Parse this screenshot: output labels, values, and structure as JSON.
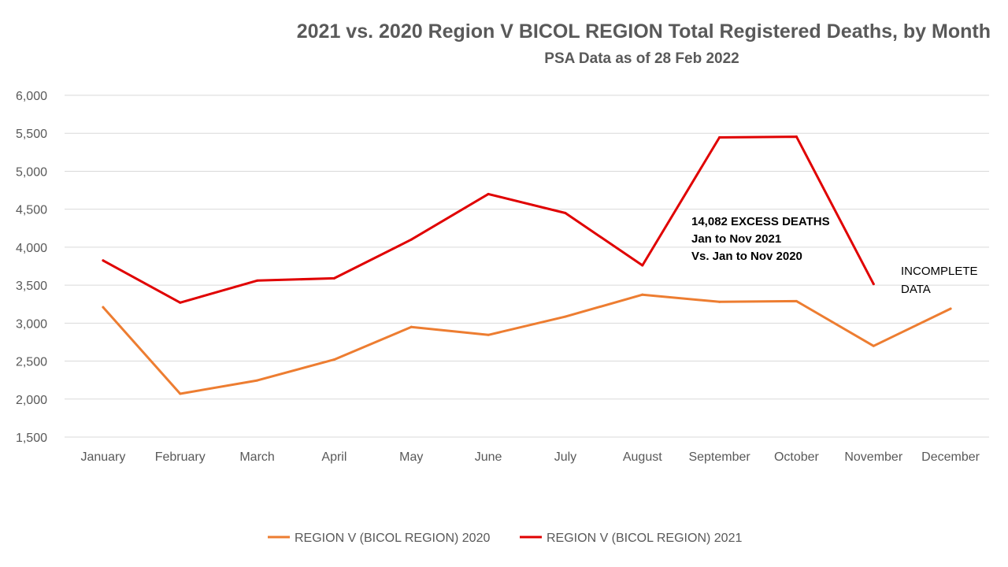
{
  "chart_data": {
    "type": "line",
    "title": "2021 vs. 2020 Region V BICOL REGION Total Registered Deaths, by Month",
    "subtitle": "PSA Data as of 28 Feb 2022",
    "categories": [
      "January",
      "February",
      "March",
      "April",
      "May",
      "June",
      "July",
      "August",
      "September",
      "October",
      "November",
      "December"
    ],
    "ylim": [
      1500,
      6000
    ],
    "yticks": [
      1500,
      2000,
      2500,
      3000,
      3500,
      4000,
      4500,
      5000,
      5500,
      6000
    ],
    "ytick_labels": [
      "1,500",
      "2,000",
      "2,500",
      "3,000",
      "3,500",
      "4,000",
      "4,500",
      "5,000",
      "5,500",
      "6,000"
    ],
    "grid": true,
    "legend_position": "bottom",
    "series": [
      {
        "name": "REGION V (BICOL REGION) 2020",
        "color": "#ED7D31",
        "values": [
          3210,
          2070,
          2245,
          2520,
          2950,
          2845,
          3085,
          3375,
          3280,
          3290,
          2700,
          3190
        ]
      },
      {
        "name": "REGION V (BICOL REGION) 2021",
        "color": "#E00000",
        "values": [
          3825,
          3270,
          3560,
          3590,
          4100,
          4700,
          4450,
          3760,
          5445,
          5455,
          3515,
          null
        ]
      }
    ],
    "annotations": {
      "excess": [
        "14,082 EXCESS DEATHS",
        "Jan to Nov 2021",
        "Vs. Jan to Nov 2020"
      ],
      "incomplete": [
        "INCOMPLETE",
        "DATA"
      ]
    }
  }
}
